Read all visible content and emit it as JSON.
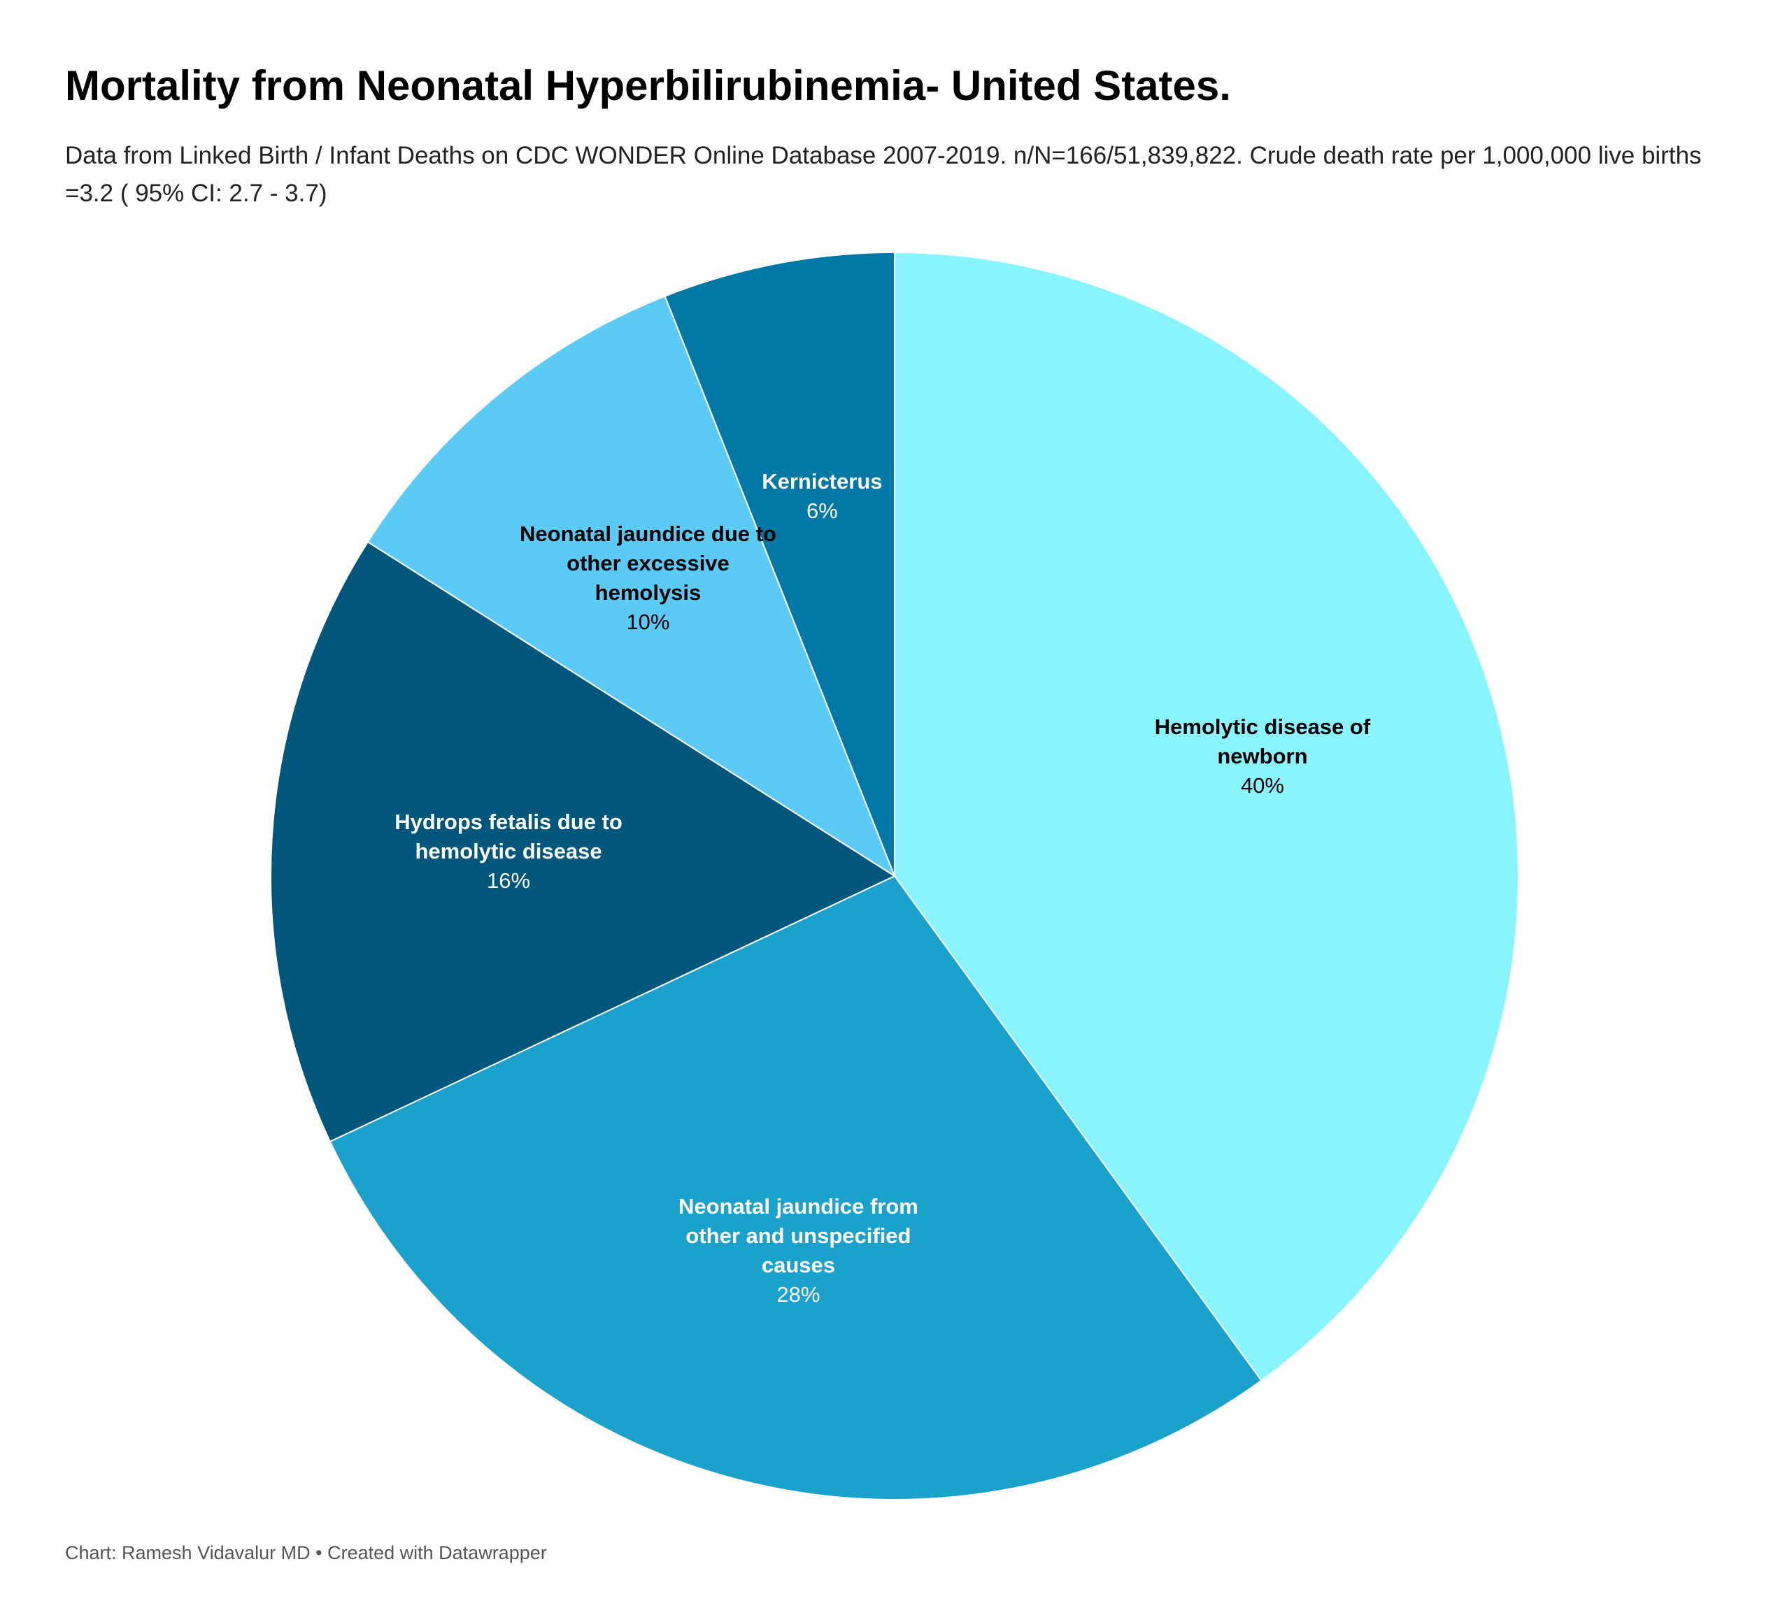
{
  "chart_data": {
    "type": "pie",
    "title": "Mortality from Neonatal Hyperbilirubinemia- United States.",
    "subtitle": "Data from Linked Birth / Infant Deaths on CDC WONDER Online Database 2007-2019. n/N=166/51,839,822. Crude death rate per 1,000,000 live births =3.2 ( 95% CI: 2.7 - 3.7)",
    "footer": "Chart: Ramesh Vidavalur MD • Created with Datawrapper",
    "categories": [
      "Hemolytic disease of newborn",
      "Neonatal jaundice from other and unspecified causes",
      "Hydrops fetalis due to hemolytic disease",
      "Neonatal jaundice due to other excessive hemolysis",
      "Kernicterus"
    ],
    "values": [
      40,
      28,
      16,
      10,
      6
    ],
    "value_labels": [
      "40%",
      "28%",
      "16%",
      "10%",
      "6%"
    ],
    "colors": [
      "#8af4fe",
      "#1aa1cc",
      "#01567b",
      "#5bcaf5",
      "#0078a6"
    ]
  }
}
